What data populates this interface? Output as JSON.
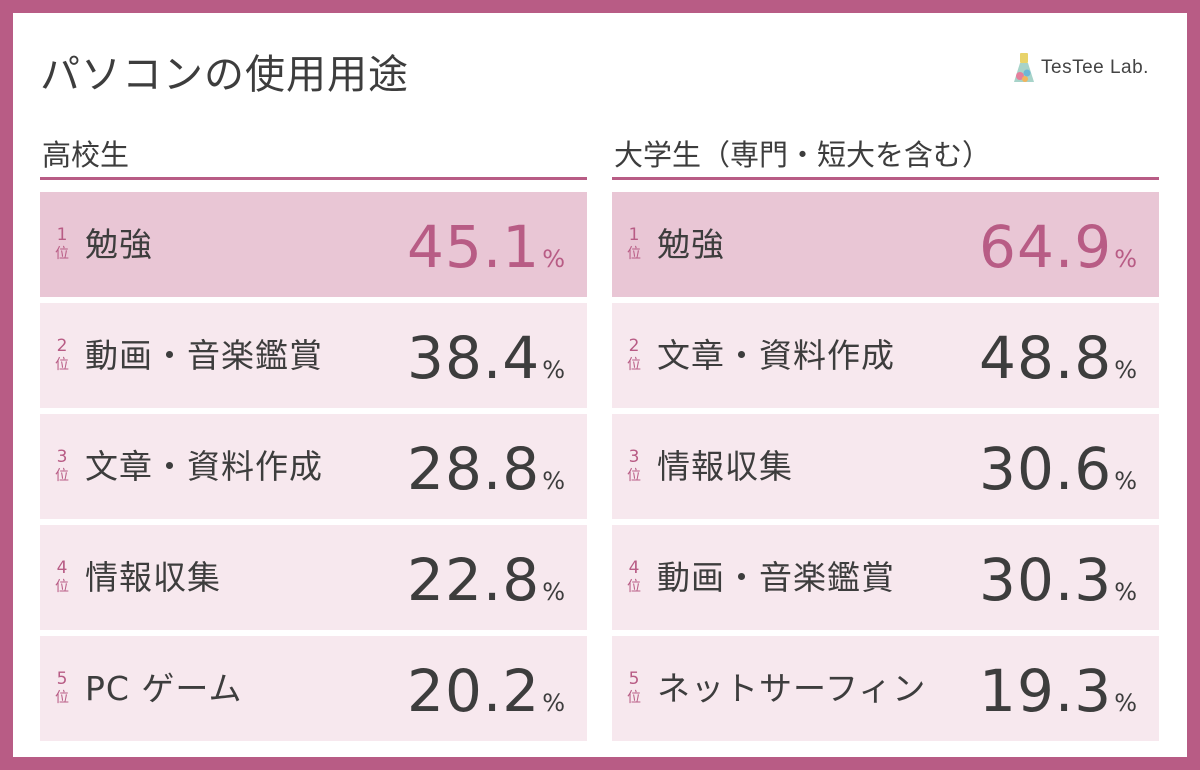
{
  "title": "パソコンの使用用途",
  "logo": {
    "text": "TesTee Lab."
  },
  "colors": {
    "accent": "#b85c85",
    "top_row": "#e9c6d5",
    "row": "#f7e8ee",
    "text": "#3d3d3d"
  },
  "rank_suffix": "位",
  "unit": "%",
  "columns": [
    {
      "header": "高校生",
      "rows": [
        {
          "rank": "1",
          "label": "勉強",
          "value": "45.1"
        },
        {
          "rank": "2",
          "label": "動画・音楽鑑賞",
          "value": "38.4"
        },
        {
          "rank": "3",
          "label": "文章・資料作成",
          "value": "28.8"
        },
        {
          "rank": "4",
          "label": "情報収集",
          "value": "22.8"
        },
        {
          "rank": "5",
          "label": "PC ゲーム",
          "value": "20.2"
        }
      ]
    },
    {
      "header": "大学生（専門・短大を含む）",
      "rows": [
        {
          "rank": "1",
          "label": "勉強",
          "value": "64.9"
        },
        {
          "rank": "2",
          "label": "文章・資料作成",
          "value": "48.8"
        },
        {
          "rank": "3",
          "label": "情報収集",
          "value": "30.6"
        },
        {
          "rank": "4",
          "label": "動画・音楽鑑賞",
          "value": "30.3"
        },
        {
          "rank": "5",
          "label": "ネットサーフィン",
          "value": "19.3"
        }
      ]
    }
  ]
}
